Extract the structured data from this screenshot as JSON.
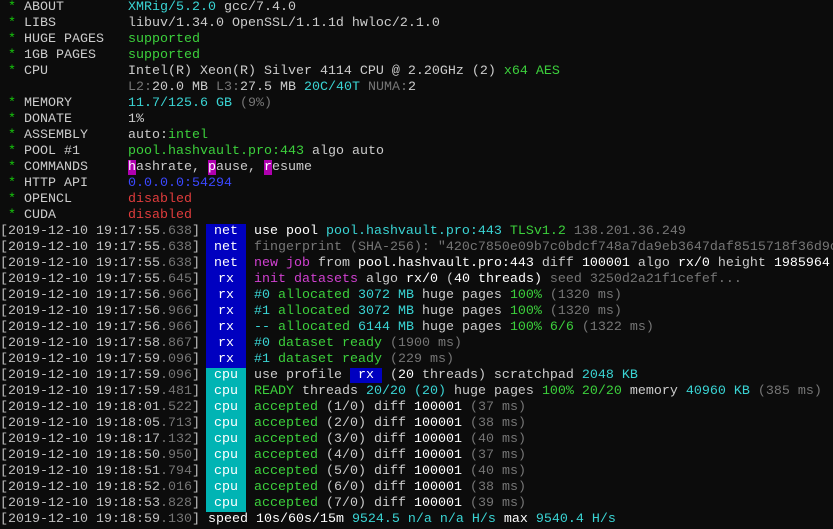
{
  "colors": {
    "green": "#3cd03c",
    "cyan": "#3ad4d4",
    "dim": "#767676",
    "magenta": "#d040d0",
    "blue": "#3b48ff",
    "red": "#e03c3c",
    "tag_net": "#0000c0",
    "tag_cpu": "#00b4b4"
  },
  "header": [
    {
      "label": "ABOUT",
      "value": [
        {
          "t": "XMRig/5.2.0",
          "c": "c"
        },
        {
          "t": " gcc/7.4.0",
          "c": "w"
        }
      ]
    },
    {
      "label": "LIBS",
      "value": [
        {
          "t": "libuv/1.34.0 OpenSSL/1.1.1d hwloc/2.1.0",
          "c": "w"
        }
      ]
    },
    {
      "label": "HUGE PAGES",
      "value": [
        {
          "t": "supported",
          "c": "g"
        }
      ]
    },
    {
      "label": "1GB PAGES",
      "value": [
        {
          "t": "supported",
          "c": "g"
        }
      ]
    },
    {
      "label": "CPU",
      "value": [
        {
          "t": "Intel(R) Xeon(R) Silver 4114 CPU @ 2.20GHz (2) ",
          "c": "w"
        },
        {
          "t": "x64 AES",
          "c": "g"
        }
      ]
    },
    {
      "label": "",
      "value": [
        {
          "t": "L2:",
          "c": "d"
        },
        {
          "t": "20.0 MB ",
          "c": "w"
        },
        {
          "t": "L3:",
          "c": "d"
        },
        {
          "t": "27.5 MB ",
          "c": "w"
        },
        {
          "t": "20C/40T",
          "c": "c"
        },
        {
          "t": " NUMA:",
          "c": "d"
        },
        {
          "t": "2",
          "c": "w"
        }
      ]
    },
    {
      "label": "MEMORY",
      "value": [
        {
          "t": "11.7/125.6 GB",
          "c": "c"
        },
        {
          "t": " (9%)",
          "c": "d"
        }
      ]
    },
    {
      "label": "DONATE",
      "value": [
        {
          "t": "1%",
          "c": "w"
        }
      ]
    },
    {
      "label": "ASSEMBLY",
      "value": [
        {
          "t": "auto:",
          "c": "w"
        },
        {
          "t": "intel",
          "c": "g"
        }
      ]
    },
    {
      "label": "POOL #1",
      "value": [
        {
          "t": "pool.hashvault.pro:443",
          "c": "g"
        },
        {
          "t": " algo auto",
          "c": "w"
        }
      ]
    },
    {
      "label": "COMMANDS",
      "value": [
        {
          "t": "h",
          "c": "mb"
        },
        {
          "t": "ashrate, ",
          "c": "w"
        },
        {
          "t": "p",
          "c": "mb"
        },
        {
          "t": "ause, ",
          "c": "w"
        },
        {
          "t": "r",
          "c": "mb"
        },
        {
          "t": "esume",
          "c": "w"
        }
      ]
    },
    {
      "label": "HTTP API",
      "value": [
        {
          "t": "0.0.0.0:54294",
          "c": "b"
        }
      ]
    },
    {
      "label": "OPENCL",
      "value": [
        {
          "t": "disabled",
          "c": "r"
        }
      ]
    },
    {
      "label": "CUDA",
      "value": [
        {
          "t": "disabled",
          "c": "r"
        }
      ]
    }
  ],
  "log": [
    {
      "time": "[2019-12-10 19:17:55",
      "ms": ".638",
      "tag": "net",
      "msg": [
        {
          "t": "use pool ",
          "c": "W"
        },
        {
          "t": "pool.hashvault.pro:443",
          "c": "c"
        },
        {
          "t": " TLSv1.2",
          "c": "g"
        },
        {
          "t": " 138.201.36.249",
          "c": "d"
        }
      ]
    },
    {
      "time": "[2019-12-10 19:17:55",
      "ms": ".638",
      "tag": "net",
      "msg": [
        {
          "t": "fingerprint (SHA-256): \"420c7850e09b7c0bdcf748a7da9eb3647daf8515718f36d9c",
          "c": "d"
        }
      ]
    },
    {
      "time": "[2019-12-10 19:17:55",
      "ms": ".638",
      "tag": "net",
      "msg": [
        {
          "t": "new job",
          "c": "m"
        },
        {
          "t": " from ",
          "c": "w"
        },
        {
          "t": "pool.hashvault.pro:443",
          "c": "W"
        },
        {
          "t": " diff ",
          "c": "w"
        },
        {
          "t": "100001",
          "c": "W"
        },
        {
          "t": " algo ",
          "c": "w"
        },
        {
          "t": "rx/0",
          "c": "W"
        },
        {
          "t": " height ",
          "c": "w"
        },
        {
          "t": "1985964",
          "c": "W"
        }
      ]
    },
    {
      "time": "[2019-12-10 19:17:55",
      "ms": ".645",
      "tag": "rx",
      "msg": [
        {
          "t": "init datasets",
          "c": "m"
        },
        {
          "t": " algo ",
          "c": "w"
        },
        {
          "t": "rx/0",
          "c": "W"
        },
        {
          "t": " (",
          "c": "w"
        },
        {
          "t": "40",
          "c": "W"
        },
        {
          "t": " threads)",
          "c": "W"
        },
        {
          "t": " seed 3250d2a21f1cefef...",
          "c": "d"
        }
      ]
    },
    {
      "time": "[2019-12-10 19:17:56",
      "ms": ".966",
      "tag": "rx",
      "msg": [
        {
          "t": "#0",
          "c": "c"
        },
        {
          "t": " allocated ",
          "c": "g"
        },
        {
          "t": "3072 MB",
          "c": "c"
        },
        {
          "t": " huge pages ",
          "c": "w"
        },
        {
          "t": "100%",
          "c": "g"
        },
        {
          "t": " (1320 ms)",
          "c": "d"
        }
      ]
    },
    {
      "time": "[2019-12-10 19:17:56",
      "ms": ".966",
      "tag": "rx",
      "msg": [
        {
          "t": "#1",
          "c": "c"
        },
        {
          "t": " allocated ",
          "c": "g"
        },
        {
          "t": "3072 MB",
          "c": "c"
        },
        {
          "t": " huge pages ",
          "c": "w"
        },
        {
          "t": "100%",
          "c": "g"
        },
        {
          "t": " (1320 ms)",
          "c": "d"
        }
      ]
    },
    {
      "time": "[2019-12-10 19:17:56",
      "ms": ".966",
      "tag": "rx",
      "msg": [
        {
          "t": "--",
          "c": "c"
        },
        {
          "t": " allocated ",
          "c": "g"
        },
        {
          "t": "6144 MB",
          "c": "c"
        },
        {
          "t": " huge pages ",
          "c": "w"
        },
        {
          "t": "100% 6/6",
          "c": "g"
        },
        {
          "t": " (1322 ms)",
          "c": "d"
        }
      ]
    },
    {
      "time": "[2019-12-10 19:17:58",
      "ms": ".867",
      "tag": "rx",
      "msg": [
        {
          "t": "#0",
          "c": "c"
        },
        {
          "t": " dataset ready",
          "c": "g"
        },
        {
          "t": " (1900 ms)",
          "c": "d"
        }
      ]
    },
    {
      "time": "[2019-12-10 19:17:59",
      "ms": ".096",
      "tag": "rx",
      "msg": [
        {
          "t": "#1",
          "c": "c"
        },
        {
          "t": " dataset ready",
          "c": "g"
        },
        {
          "t": " (229 ms)",
          "c": "d"
        }
      ]
    },
    {
      "time": "[2019-12-10 19:17:59",
      "ms": ".096",
      "tag": "cpu",
      "msg": [
        {
          "t": "use profile ",
          "c": "w"
        },
        {
          "t": " rx ",
          "c": "rb"
        },
        {
          "t": " (",
          "c": "w"
        },
        {
          "t": "20",
          "c": "W"
        },
        {
          "t": " threads)",
          "c": "w"
        },
        {
          "t": " scratchpad ",
          "c": "w"
        },
        {
          "t": "2048 KB",
          "c": "c"
        }
      ]
    },
    {
      "time": "[2019-12-10 19:17:59",
      "ms": ".481",
      "tag": "cpu",
      "msg": [
        {
          "t": "READY",
          "c": "g"
        },
        {
          "t": " threads ",
          "c": "w"
        },
        {
          "t": "20/20",
          "c": "c"
        },
        {
          "t": " (20)",
          "c": "c"
        },
        {
          "t": " huge pages ",
          "c": "w"
        },
        {
          "t": "100% 20/20",
          "c": "g"
        },
        {
          "t": " memory ",
          "c": "w"
        },
        {
          "t": "40960 KB",
          "c": "c"
        },
        {
          "t": " (385 ms)",
          "c": "d"
        }
      ]
    },
    {
      "time": "[2019-12-10 19:18:01",
      "ms": ".522",
      "tag": "cpu",
      "msg": [
        {
          "t": "accepted",
          "c": "g"
        },
        {
          "t": " (1/0) diff ",
          "c": "w"
        },
        {
          "t": "100001",
          "c": "W"
        },
        {
          "t": " (37 ms)",
          "c": "d"
        }
      ]
    },
    {
      "time": "[2019-12-10 19:18:05",
      "ms": ".713",
      "tag": "cpu",
      "msg": [
        {
          "t": "accepted",
          "c": "g"
        },
        {
          "t": " (2/0) diff ",
          "c": "w"
        },
        {
          "t": "100001",
          "c": "W"
        },
        {
          "t": " (38 ms)",
          "c": "d"
        }
      ]
    },
    {
      "time": "[2019-12-10 19:18:17",
      "ms": ".132",
      "tag": "cpu",
      "msg": [
        {
          "t": "accepted",
          "c": "g"
        },
        {
          "t": " (3/0) diff ",
          "c": "w"
        },
        {
          "t": "100001",
          "c": "W"
        },
        {
          "t": " (40 ms)",
          "c": "d"
        }
      ]
    },
    {
      "time": "[2019-12-10 19:18:50",
      "ms": ".950",
      "tag": "cpu",
      "msg": [
        {
          "t": "accepted",
          "c": "g"
        },
        {
          "t": " (4/0) diff ",
          "c": "w"
        },
        {
          "t": "100001",
          "c": "W"
        },
        {
          "t": " (37 ms)",
          "c": "d"
        }
      ]
    },
    {
      "time": "[2019-12-10 19:18:51",
      "ms": ".794",
      "tag": "cpu",
      "msg": [
        {
          "t": "accepted",
          "c": "g"
        },
        {
          "t": " (5/0) diff ",
          "c": "w"
        },
        {
          "t": "100001",
          "c": "W"
        },
        {
          "t": " (40 ms)",
          "c": "d"
        }
      ]
    },
    {
      "time": "[2019-12-10 19:18:52",
      "ms": ".016",
      "tag": "cpu",
      "msg": [
        {
          "t": "accepted",
          "c": "g"
        },
        {
          "t": " (6/0) diff ",
          "c": "w"
        },
        {
          "t": "100001",
          "c": "W"
        },
        {
          "t": " (38 ms)",
          "c": "d"
        }
      ]
    },
    {
      "time": "[2019-12-10 19:18:53",
      "ms": ".828",
      "tag": "cpu",
      "msg": [
        {
          "t": "accepted",
          "c": "g"
        },
        {
          "t": " (7/0) diff ",
          "c": "w"
        },
        {
          "t": "100001",
          "c": "W"
        },
        {
          "t": " (39 ms)",
          "c": "d"
        }
      ]
    },
    {
      "time": "[2019-12-10 19:18:59",
      "ms": ".130",
      "tag": "",
      "msg": [
        {
          "t": "speed 10s/60s/15m ",
          "c": "W"
        },
        {
          "t": "9524.5",
          "c": "c"
        },
        {
          "t": " n/a n/a H/s",
          "c": "c"
        },
        {
          "t": " max ",
          "c": "W"
        },
        {
          "t": "9540.4 H/s",
          "c": "c"
        }
      ]
    }
  ]
}
